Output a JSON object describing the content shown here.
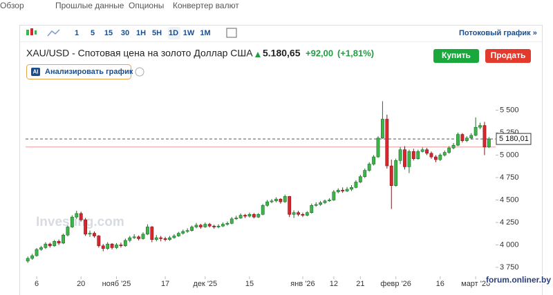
{
  "ui": {
    "nav": [
      "Обзор",
      "Прошлые данные",
      "Опционы",
      "Конвертер валют"
    ],
    "intervals": [
      "1",
      "5",
      "15",
      "30",
      "1H",
      "5H",
      "1D",
      "1W",
      "1M"
    ],
    "stream": "Потоковый график »",
    "instrument": "XAU/USD - Спотовая цена на золото Доллар США",
    "price": "5.180,65",
    "change": "+92,00",
    "change_pct": "(+1,81%)",
    "buy": "Купить",
    "sell": "Продать",
    "ai_badge": "AI",
    "analyze": "Анализировать график",
    "watermark": "Investing.com",
    "forum": "forum.onliner.by"
  },
  "chart_data": {
    "type": "candlestick",
    "open": [
      3820,
      3850,
      3880,
      3950,
      3970,
      4010,
      3990,
      4040,
      4020,
      4110,
      4200,
      4310,
      4350,
      4280,
      4120,
      4130,
      4100,
      3990,
      3960,
      4010,
      3970,
      4000,
      3990,
      4050,
      4080,
      4090,
      4070,
      4120,
      4200,
      4060,
      4080,
      4070,
      4060,
      4080,
      4100,
      4130,
      4150,
      4160,
      4200,
      4220,
      4200,
      4230,
      4210,
      4200,
      4210,
      4230,
      4240,
      4290,
      4300,
      4330,
      4320,
      4340,
      4310,
      4340,
      4440,
      4480,
      4490,
      4510,
      4480,
      4540,
      4340,
      4360,
      4340,
      4330,
      4360,
      4440,
      4450,
      4470,
      4490,
      4500,
      4590,
      4610,
      4600,
      4620,
      4640,
      4700,
      4760,
      4830,
      4900,
      4980,
      5190,
      5400,
      4880,
      4660,
      4940,
      5060,
      4870,
      5040,
      4960,
      5040,
      5060,
      5020,
      4980,
      4950,
      5000,
      5030,
      5080,
      5110,
      5230,
      5160,
      5190,
      5220,
      5310,
      5330,
      5090
    ],
    "high": [
      3870,
      3900,
      3965,
      3990,
      4030,
      4025,
      4055,
      4060,
      4125,
      4215,
      4330,
      4380,
      4370,
      4300,
      4160,
      4150,
      4110,
      4010,
      4030,
      4020,
      4020,
      4025,
      4070,
      4100,
      4120,
      4105,
      4140,
      4230,
      4210,
      4110,
      4100,
      4090,
      4100,
      4120,
      4145,
      4170,
      4185,
      4215,
      4245,
      4235,
      4250,
      4245,
      4225,
      4230,
      4250,
      4260,
      4310,
      4325,
      4350,
      4345,
      4360,
      4355,
      4355,
      4455,
      4500,
      4510,
      4530,
      4520,
      4560,
      4545,
      4385,
      4380,
      4360,
      4375,
      4460,
      4475,
      4490,
      4505,
      4520,
      4610,
      4630,
      4640,
      4645,
      4665,
      4720,
      4780,
      4850,
      4920,
      5000,
      5210,
      5600,
      5450,
      4950,
      4960,
      5090,
      5100,
      5060,
      5070,
      5060,
      5085,
      5080,
      5040,
      5000,
      5020,
      5050,
      5100,
      5135,
      5250,
      5245,
      5210,
      5245,
      5420,
      5360,
      5370,
      5200
    ],
    "low": [
      3800,
      3835,
      3870,
      3935,
      3955,
      3970,
      3980,
      4000,
      4010,
      4095,
      4190,
      4290,
      4260,
      4100,
      4090,
      4080,
      3970,
      3930,
      3945,
      3950,
      3955,
      3970,
      3980,
      4030,
      4065,
      4050,
      4060,
      4110,
      4030,
      4040,
      4040,
      4040,
      4045,
      4070,
      4090,
      4115,
      4135,
      4150,
      4185,
      4180,
      4190,
      4195,
      4180,
      4185,
      4200,
      4215,
      4230,
      4280,
      4290,
      4300,
      4305,
      4295,
      4300,
      4330,
      4425,
      4465,
      4475,
      4460,
      4470,
      4310,
      4300,
      4320,
      4310,
      4320,
      4350,
      4425,
      4435,
      4455,
      4480,
      4490,
      4575,
      4580,
      4590,
      4600,
      4630,
      4690,
      4745,
      4815,
      4885,
      4970,
      5180,
      4850,
      4400,
      4650,
      4900,
      4840,
      4800,
      4940,
      4950,
      5030,
      5000,
      4960,
      4920,
      4935,
      4985,
      5015,
      5065,
      5100,
      5140,
      5145,
      5175,
      5210,
      5290,
      5000,
      5080
    ],
    "close": [
      3850,
      3880,
      3950,
      3970,
      4010,
      3990,
      4040,
      4020,
      4110,
      4200,
      4310,
      4350,
      4280,
      4120,
      4130,
      4100,
      3990,
      3960,
      4010,
      3970,
      4000,
      3990,
      4050,
      4080,
      4090,
      4070,
      4120,
      4200,
      4060,
      4080,
      4070,
      4060,
      4080,
      4100,
      4130,
      4150,
      4160,
      4200,
      4220,
      4200,
      4230,
      4210,
      4200,
      4210,
      4230,
      4240,
      4290,
      4300,
      4330,
      4320,
      4340,
      4310,
      4340,
      4440,
      4480,
      4490,
      4510,
      4480,
      4540,
      4340,
      4360,
      4340,
      4330,
      4360,
      4440,
      4450,
      4470,
      4490,
      4500,
      4590,
      4610,
      4600,
      4620,
      4640,
      4700,
      4760,
      4830,
      4900,
      4980,
      5190,
      5400,
      4880,
      4660,
      4940,
      5060,
      4870,
      5040,
      4960,
      5040,
      5060,
      5020,
      4980,
      4950,
      5000,
      5030,
      5080,
      5110,
      5230,
      5160,
      5190,
      5220,
      5310,
      5330,
      5090,
      5180.65
    ],
    "up_color": "#3db549",
    "down_color": "#d9262c",
    "xlim": [
      -0.5,
      105.5
    ],
    "xticks": [
      {
        "value": 2,
        "label": "6"
      },
      {
        "value": 12,
        "label": "20"
      },
      {
        "value": 20,
        "label": "нояб '25"
      },
      {
        "value": 31,
        "label": "17"
      },
      {
        "value": 40,
        "label": "дек '25"
      },
      {
        "value": 50,
        "label": "15"
      },
      {
        "value": 62,
        "label": "янв '26"
      },
      {
        "value": 69,
        "label": "12"
      },
      {
        "value": 75,
        "label": "21"
      },
      {
        "value": 83,
        "label": "февр '26"
      },
      {
        "value": 93,
        "label": "16"
      },
      {
        "value": 101,
        "label": "март '26"
      }
    ],
    "ylim": [
      3650,
      5650
    ],
    "yticks": [
      {
        "value": 3750,
        "label": "3 750"
      },
      {
        "value": 4000,
        "label": "4 000"
      },
      {
        "value": 4250,
        "label": "4 250"
      },
      {
        "value": 4500,
        "label": "4 500"
      },
      {
        "value": 4750,
        "label": "4 750"
      },
      {
        "value": 5000,
        "label": "5 000"
      },
      {
        "value": 5250,
        "label": "5 250"
      },
      {
        "value": 5500,
        "label": "5 500"
      }
    ],
    "price_line": {
      "value": 5180.01,
      "label": "5 180,01"
    },
    "reference_line": 5090,
    "grid": false
  }
}
